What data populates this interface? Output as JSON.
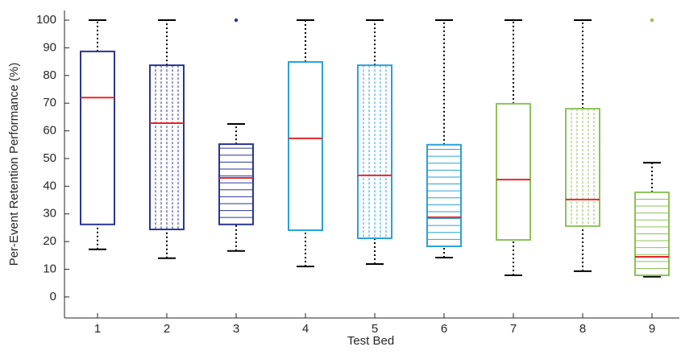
{
  "chart_data": {
    "type": "box",
    "xlabel": "Test Bed",
    "ylabel": "Per-Event Retention Performance (%)",
    "categories": [
      "1",
      "2",
      "3",
      "4",
      "5",
      "6",
      "7",
      "8",
      "9"
    ],
    "whisker_low": [
      17.2,
      14,
      16.6,
      11,
      11.9,
      14.2,
      7.8,
      9.3,
      7.3
    ],
    "q1": [
      26.2,
      24.4,
      26.2,
      24.1,
      21.2,
      18.3,
      20.6,
      25.6,
      7.8
    ],
    "median": [
      72,
      62.8,
      43,
      57.3,
      43.9,
      28.8,
      42.4,
      35.2,
      14.5
    ],
    "q3": [
      88.7,
      83.7,
      55.2,
      84.9,
      83.7,
      55,
      69.8,
      68,
      37.8
    ],
    "whisker_high": [
      100,
      100,
      62.5,
      100,
      100,
      100,
      100,
      100,
      48.5
    ],
    "outliers": [
      [],
      [],
      [
        100
      ],
      [],
      [],
      [],
      [],
      [],
      [
        100
      ]
    ],
    "colors": [
      "#2b3590",
      "#2b3590",
      "#2b3590",
      "#2aa2d6",
      "#2aa2d6",
      "#2aa2d6",
      "#8dc258",
      "#8dc258",
      "#8dc258"
    ],
    "hatch": [
      "none",
      "vertical",
      "horizontal",
      "none",
      "vertical",
      "horizontal",
      "none",
      "vertical",
      "horizontal"
    ],
    "median_color": "#e8262a",
    "whisker_color": "#000000",
    "ylim": [
      -7.6,
      103.5
    ],
    "yticks": [
      0,
      10,
      20,
      30,
      40,
      50,
      60,
      70,
      80,
      90,
      100
    ]
  }
}
